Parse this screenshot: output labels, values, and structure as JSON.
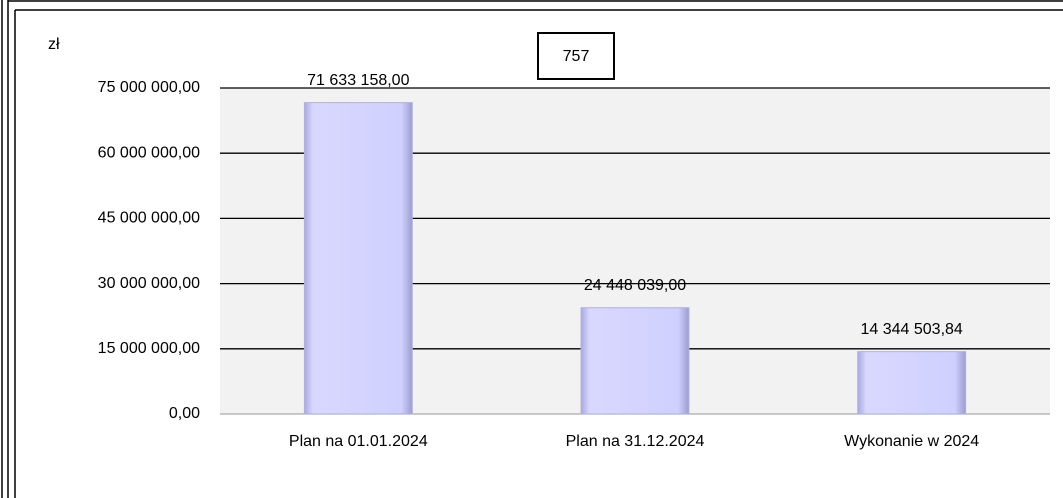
{
  "chart_data": {
    "type": "bar",
    "title": "757",
    "y_unit": "zł",
    "categories": [
      "Plan na 01.01.2024",
      "Plan na 31.12.2024",
      "Wykonanie w 2024"
    ],
    "values": [
      71633158,
      24448039,
      14344503.84
    ],
    "value_labels": [
      "71 633 158,00",
      "24 448 039,00",
      "14 344 503,84"
    ],
    "color": "#ccccff",
    "ylim": [
      0,
      75000000
    ],
    "yticks": [
      {
        "value": 0,
        "label": "0,00"
      },
      {
        "value": 15000000,
        "label": "15 000 000,00"
      },
      {
        "value": 30000000,
        "label": "30 000 000,00"
      },
      {
        "value": 45000000,
        "label": "45 000 000,00"
      },
      {
        "value": 60000000,
        "label": "60 000 000,00"
      },
      {
        "value": 75000000,
        "label": "75 000 000,00"
      }
    ],
    "grid": true
  }
}
